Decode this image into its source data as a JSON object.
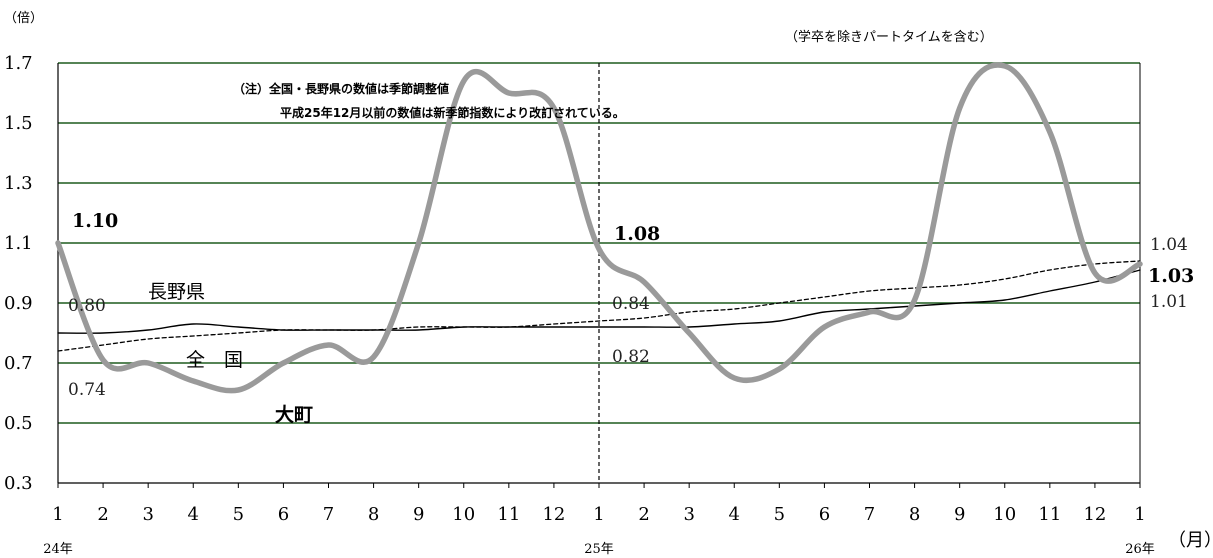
{
  "chart_data": {
    "type": "line",
    "y_unit_label": "（倍）",
    "x_unit_label": "（月）",
    "subtitle": "（学卒を除きパートタイムを含む）",
    "notes": [
      "（注）全国・長野県の数値は季節調整値",
      "平成25年12月以前の数値は新季節指数により改訂されている。"
    ],
    "ylim": [
      0.3,
      1.7
    ],
    "y_ticks": [
      "0.3",
      "0.5",
      "0.7",
      "0.9",
      "1.1",
      "1.3",
      "1.5",
      "1.7"
    ],
    "x_ticks": [
      "1",
      "2",
      "3",
      "4",
      "5",
      "6",
      "7",
      "8",
      "9",
      "10",
      "11",
      "12",
      "1",
      "2",
      "3",
      "4",
      "5",
      "6",
      "7",
      "8",
      "9",
      "10",
      "11",
      "12",
      "1"
    ],
    "year_labels": [
      "24年",
      "25年",
      "26年"
    ],
    "grid": true,
    "series": [
      {
        "name": "長野県",
        "style": "solid-thin",
        "color": "#000000",
        "values": [
          0.8,
          0.8,
          0.81,
          0.83,
          0.82,
          0.81,
          0.81,
          0.81,
          0.81,
          0.82,
          0.82,
          0.82,
          0.82,
          0.82,
          0.82,
          0.83,
          0.84,
          0.87,
          0.88,
          0.89,
          0.9,
          0.91,
          0.94,
          0.97,
          1.01
        ]
      },
      {
        "name": "全　国",
        "style": "dashed-thin",
        "color": "#000000",
        "values": [
          0.74,
          0.76,
          0.78,
          0.79,
          0.8,
          0.81,
          0.81,
          0.81,
          0.82,
          0.82,
          0.82,
          0.83,
          0.84,
          0.85,
          0.87,
          0.88,
          0.9,
          0.92,
          0.94,
          0.95,
          0.96,
          0.98,
          1.01,
          1.03,
          1.04
        ]
      },
      {
        "name": "大町",
        "style": "thick",
        "color": "#9a9a9a",
        "values": [
          1.1,
          0.71,
          0.7,
          0.64,
          0.61,
          0.7,
          0.76,
          0.72,
          1.1,
          1.64,
          1.6,
          1.55,
          1.08,
          0.97,
          0.8,
          0.65,
          0.68,
          0.82,
          0.87,
          0.91,
          1.55,
          1.69,
          1.47,
          1.0,
          1.03
        ]
      }
    ],
    "value_labels": [
      {
        "text": "1.10",
        "bold": true
      },
      {
        "text": "0.80",
        "bold": false
      },
      {
        "text": "0.74",
        "bold": false
      },
      {
        "text": "1.08",
        "bold": true
      },
      {
        "text": "0.84",
        "bold": false
      },
      {
        "text": "0.82",
        "bold": false
      },
      {
        "text": "1.04",
        "bold": false
      },
      {
        "text": "1.03",
        "bold": true
      },
      {
        "text": "1.01",
        "bold": false
      }
    ]
  }
}
